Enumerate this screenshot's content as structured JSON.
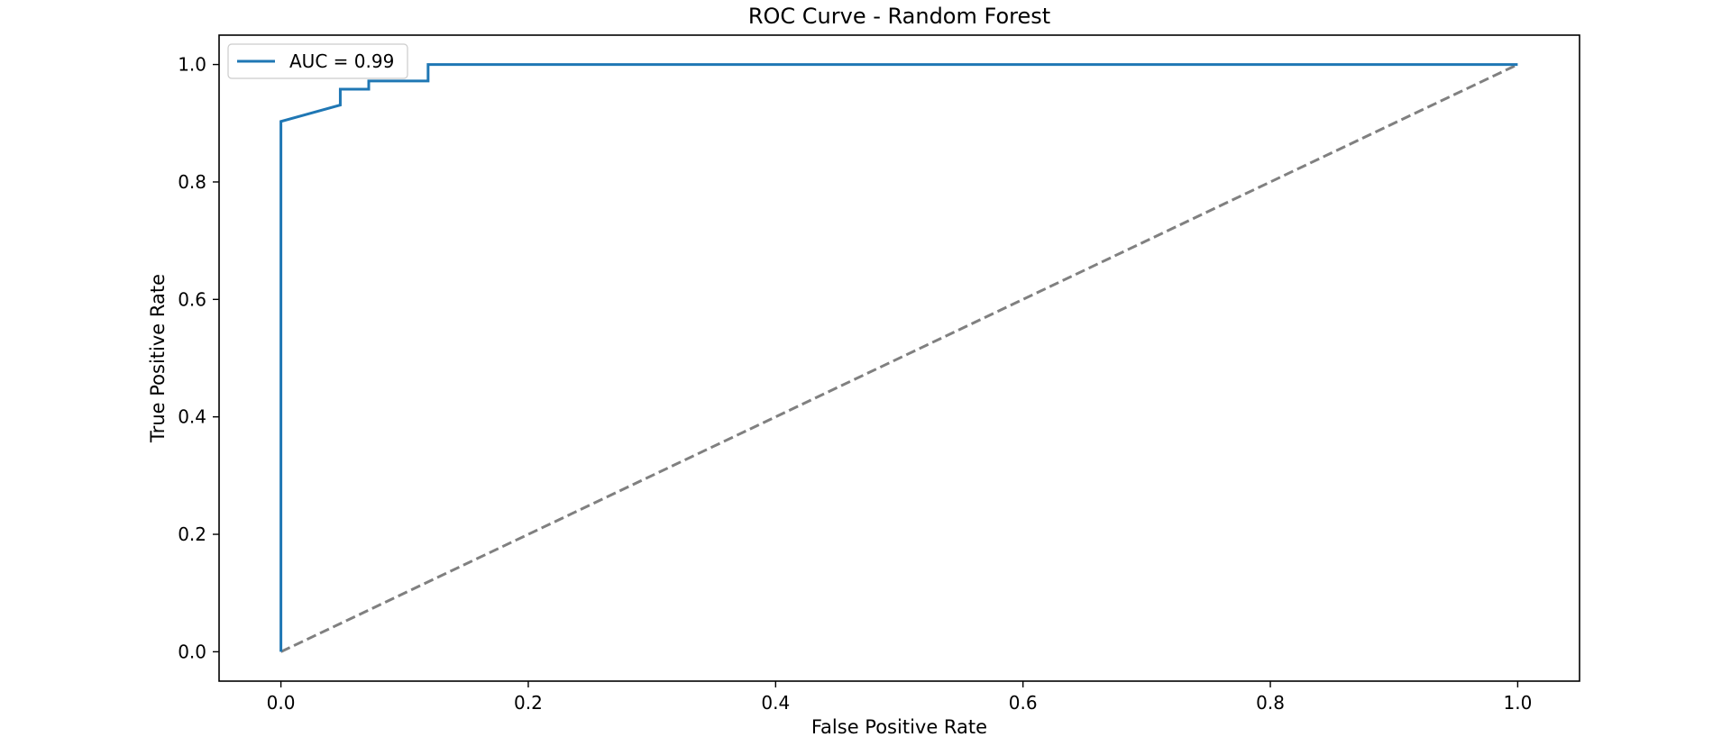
{
  "chart_data": {
    "type": "line",
    "title": "ROC Curve - Random Forest",
    "xlabel": "False Positive Rate",
    "ylabel": "True Positive Rate",
    "xlim": [
      -0.05,
      1.05
    ],
    "ylim": [
      -0.05,
      1.05
    ],
    "x_ticks": [
      0.0,
      0.2,
      0.4,
      0.6,
      0.8,
      1.0
    ],
    "x_tick_labels": [
      "0.0",
      "0.2",
      "0.4",
      "0.6",
      "0.8",
      "1.0"
    ],
    "y_ticks": [
      0.0,
      0.2,
      0.4,
      0.6,
      0.8,
      1.0
    ],
    "y_tick_labels": [
      "0.0",
      "0.2",
      "0.4",
      "0.6",
      "0.8",
      "1.0"
    ],
    "grid": false,
    "legend_position": "upper-left",
    "series": [
      {
        "name": "AUC = 0.99",
        "color": "#1f77b4",
        "style": "solid",
        "x": [
          0.0,
          0.0,
          0.048,
          0.048,
          0.071,
          0.071,
          0.119,
          0.119,
          1.0
        ],
        "y": [
          0.0,
          0.903,
          0.931,
          0.958,
          0.958,
          0.972,
          0.972,
          1.0,
          1.0
        ]
      },
      {
        "color": "#808080",
        "style": "dashed",
        "x": [
          0.0,
          1.0
        ],
        "y": [
          0.0,
          1.0
        ]
      }
    ]
  }
}
